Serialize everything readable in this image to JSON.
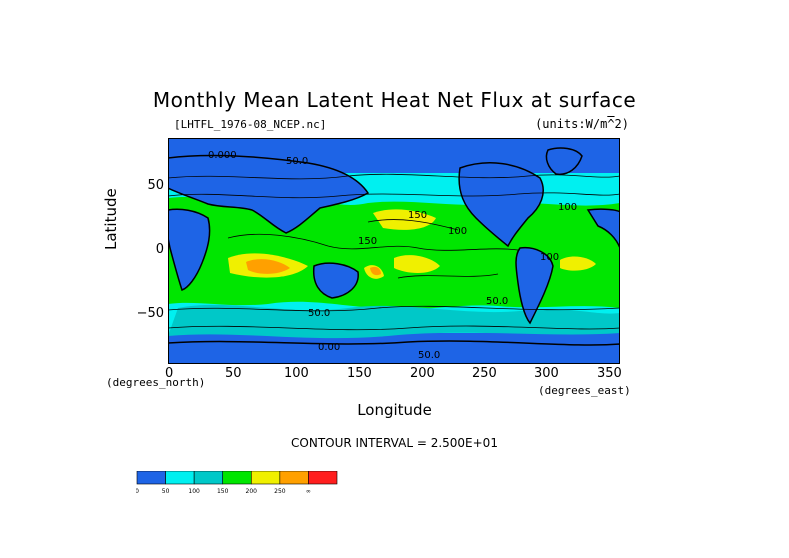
{
  "page": {
    "title": "Monthly Mean Latent Heat Net Flux at surface",
    "file_label": "[LHTFL_1976-08_NCEP.nc]",
    "units_label": "(units:W/m^2)",
    "contour_interval_label": "CONTOUR INTERVAL = 2.500E+01"
  },
  "chart_data": {
    "type": "heatmap",
    "title": "Monthly Mean Latent Heat Net Flux at surface",
    "xlabel": "Longitude",
    "ylabel": "Latitude",
    "x_units": "(degrees_east)",
    "y_units": "(degrees_north)",
    "xlim": [
      0,
      360
    ],
    "ylim": [
      -90,
      90
    ],
    "x_ticks": [
      "0",
      "50",
      "100",
      "150",
      "200",
      "250",
      "300",
      "350"
    ],
    "x_tick_values": [
      0,
      50,
      100,
      150,
      200,
      250,
      300,
      350
    ],
    "y_ticks": [
      "50",
      "0",
      "−50"
    ],
    "y_tick_values": [
      50,
      0,
      -50
    ],
    "contour_labels": [
      "0.000",
      "50.0",
      "100",
      "150",
      "50.0",
      "100",
      "50.0",
      "0.00",
      "100",
      "50.0",
      "150"
    ],
    "colorbar": {
      "levels": [
        "0",
        "50",
        "100",
        "150",
        "200",
        "250"
      ],
      "overflow_label": "∞",
      "colors": [
        "#1e64e6",
        "#00f0f0",
        "#00c8c8",
        "#00e600",
        "#f0f000",
        "#ffa000",
        "#ff1e1e"
      ]
    }
  }
}
